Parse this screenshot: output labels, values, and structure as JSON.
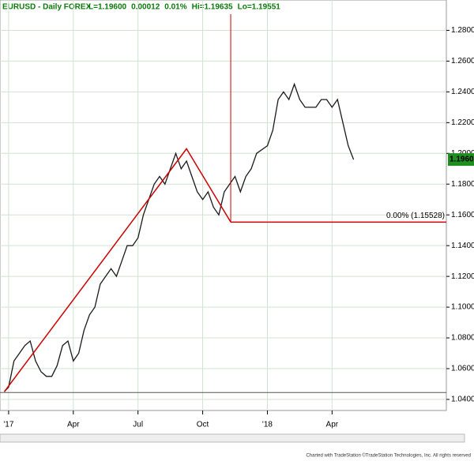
{
  "chart_data": {
    "type": "line",
    "title": "EURUSD - Daily FOREX",
    "header_stats": [
      "L=1.19600",
      "0.00012",
      "0.01%",
      "Hi=1.19635",
      "Lo=1.19551"
    ],
    "last_price_label": "1.19600",
    "footer": "Charted with TradeStation ©TradeStation Technologies, Inc. All rights reserved",
    "fib_label": "0.00% (1.15528)",
    "color": "#1a1a1a",
    "fib_color": "#cc0000",
    "x": [
      -0.2,
      0,
      0.25,
      0.5,
      0.75,
      1,
      1.25,
      1.5,
      1.75,
      2,
      2.25,
      2.5,
      2.75,
      3,
      3.25,
      3.5,
      3.75,
      4,
      4.25,
      4.5,
      4.75,
      5,
      5.25,
      5.5,
      5.75,
      6,
      6.25,
      6.5,
      6.75,
      7,
      7.25,
      7.5,
      7.75,
      8,
      8.25,
      8.5,
      8.75,
      9,
      9.25,
      9.5,
      9.75,
      10,
      10.25,
      10.5,
      10.75,
      11,
      11.25,
      11.5,
      12,
      12.25,
      12.5,
      12.75,
      13,
      13.25,
      13.5,
      13.75,
      14,
      14.25,
      14.5,
      14.75,
      15,
      15.25,
      15.5,
      15.75,
      16
    ],
    "values": [
      1.045,
      1.048,
      1.065,
      1.07,
      1.075,
      1.078,
      1.065,
      1.058,
      1.055,
      1.055,
      1.062,
      1.075,
      1.078,
      1.065,
      1.07,
      1.085,
      1.095,
      1.1,
      1.115,
      1.12,
      1.125,
      1.12,
      1.13,
      1.14,
      1.14,
      1.145,
      1.16,
      1.17,
      1.18,
      1.185,
      1.18,
      1.19,
      1.2,
      1.19,
      1.195,
      1.185,
      1.175,
      1.17,
      1.175,
      1.165,
      1.16,
      1.175,
      1.18,
      1.185,
      1.175,
      1.185,
      1.19,
      1.2,
      1.205,
      1.215,
      1.235,
      1.24,
      1.235,
      1.245,
      1.235,
      1.23,
      1.23,
      1.23,
      1.235,
      1.235,
      1.23,
      1.235,
      1.22,
      1.205,
      1.196
    ],
    "fib_x": [
      -0.2,
      8.25,
      10.3
    ],
    "fib_y": [
      1.045,
      1.203,
      1.15528
    ],
    "reference_line": 1.0445,
    "xlim": [
      -0.4,
      20.3
    ],
    "ylim": [
      1.0328,
      1.2905
    ],
    "xticks": [
      {
        "value": 0,
        "label": "'17"
      },
      {
        "value": 3,
        "label": "Apr"
      },
      {
        "value": 6,
        "label": "Jul"
      },
      {
        "value": 9,
        "label": "Oct"
      },
      {
        "value": 12,
        "label": "'18"
      },
      {
        "value": 15,
        "label": "Apr"
      }
    ],
    "yticks": [
      {
        "value": 1.04,
        "label": "1.04000"
      },
      {
        "value": 1.06,
        "label": "1.06000"
      },
      {
        "value": 1.08,
        "label": "1.08000"
      },
      {
        "value": 1.1,
        "label": "1.10000"
      },
      {
        "value": 1.12,
        "label": "1.12000"
      },
      {
        "value": 1.14,
        "label": "1.14000"
      },
      {
        "value": 1.16,
        "label": "1.16000"
      },
      {
        "value": 1.18,
        "label": "1.18000"
      },
      {
        "value": 1.2,
        "label": "1.20000"
      },
      {
        "value": 1.22,
        "label": "1.22000"
      },
      {
        "value": 1.24,
        "label": "1.24000"
      },
      {
        "value": 1.26,
        "label": "1.26000"
      },
      {
        "value": 1.28,
        "label": "1.28000"
      }
    ],
    "grid": true
  }
}
